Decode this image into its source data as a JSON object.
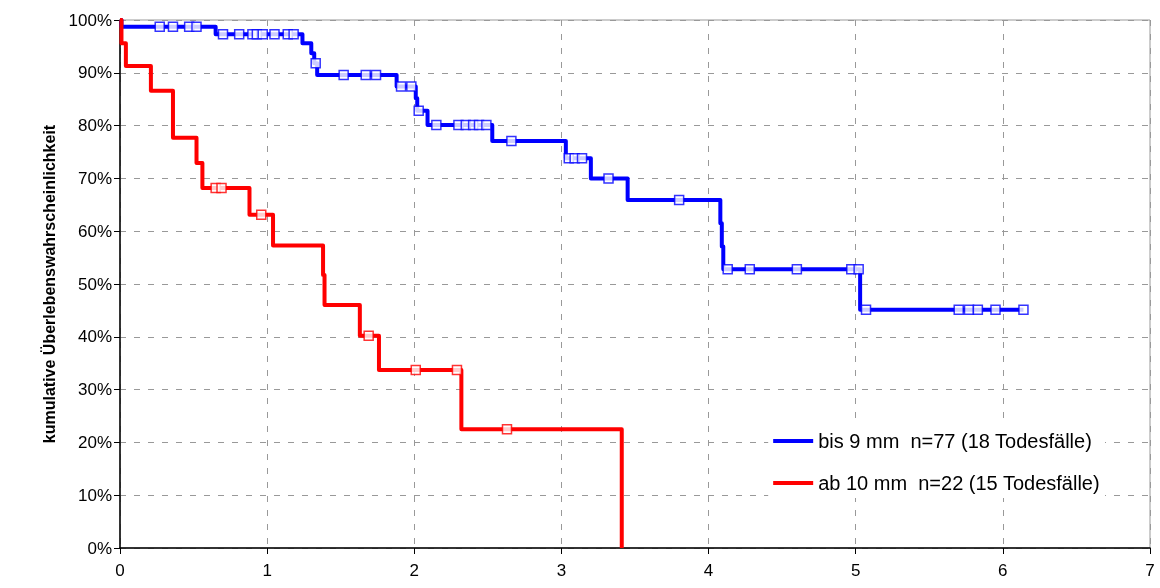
{
  "chart_data": {
    "type": "step",
    "ylabel": "kumulative Überlebenswahrscheinlichkeit",
    "xlim": [
      0,
      7
    ],
    "xticks": [
      0,
      1,
      2,
      3,
      4,
      5,
      6,
      7
    ],
    "ylim": [
      0,
      100
    ],
    "yticks": [
      {
        "value": 0,
        "label": "0%"
      },
      {
        "value": 10,
        "label": "10%"
      },
      {
        "value": 20,
        "label": "20%"
      },
      {
        "value": 30,
        "label": "30%"
      },
      {
        "value": 40,
        "label": "40%"
      },
      {
        "value": 50,
        "label": "50%"
      },
      {
        "value": 60,
        "label": "60%"
      },
      {
        "value": 70,
        "label": "70%"
      },
      {
        "value": 80,
        "label": "80%"
      },
      {
        "value": 90,
        "label": "90%"
      },
      {
        "value": 100,
        "label": "100%"
      }
    ],
    "grid": true,
    "legend": "bottom right",
    "line_style": "solid",
    "series": [
      {
        "type": "step",
        "name": "bis 9 mm  n=77 (18 Todesfälle)",
        "color": "#0000ff",
        "x": [
          0,
          0.01,
          0.65,
          1.24,
          1.3,
          1.32,
          1.34,
          1.88,
          2.01,
          2.02,
          2.09,
          2.53,
          3.03,
          3.2,
          3.45,
          4.08,
          4.09,
          4.1,
          5.03,
          6.14
        ],
        "values": [
          100,
          98.7,
          97.3,
          95.6,
          93.7,
          91.8,
          89.6,
          87.4,
          85.2,
          82.8,
          80.1,
          77.1,
          73.8,
          70.0,
          65.9,
          61.5,
          57.1,
          52.8,
          45.1,
          45.1
        ]
      },
      {
        "type": "step",
        "name": "ab 10 mm  n=22 (15 Todesfälle)",
        "color": "#ff0000",
        "x": [
          0,
          0.01,
          0.04,
          0.21,
          0.36,
          0.52,
          0.56,
          0.88,
          1.04,
          1.38,
          1.39,
          1.63,
          1.76,
          2.32,
          3.41
        ],
        "values": [
          100,
          95.6,
          91.3,
          86.6,
          77.7,
          72.9,
          68.2,
          63.1,
          57.3,
          51.7,
          46.0,
          40.2,
          33.7,
          22.5,
          0
        ]
      },
      {
        "type": "scatter",
        "marker": "square",
        "color": "#0000ff",
        "x": [
          0.27,
          0.36,
          0.47,
          0.52,
          0.7,
          0.81,
          0.9,
          0.93,
          0.97,
          1.05,
          1.14,
          1.18,
          1.33,
          1.52,
          1.67,
          1.74,
          1.91,
          1.98,
          2.03,
          2.15,
          2.3,
          2.35,
          2.4,
          2.44,
          2.49,
          2.66,
          3.05,
          3.09,
          3.14,
          3.32,
          3.8,
          4.13,
          4.28,
          4.6,
          4.97,
          5.02,
          5.07,
          5.7,
          5.77,
          5.83,
          5.95,
          6.14
        ],
        "values": [
          98.7,
          98.7,
          98.7,
          98.7,
          97.3,
          97.3,
          97.3,
          97.3,
          97.3,
          97.3,
          97.3,
          97.3,
          91.8,
          89.6,
          89.6,
          89.6,
          87.4,
          87.4,
          82.8,
          80.1,
          80.1,
          80.1,
          80.1,
          80.1,
          80.1,
          77.1,
          73.8,
          73.8,
          73.8,
          70.0,
          65.9,
          52.8,
          52.8,
          52.8,
          52.8,
          52.8,
          45.1,
          45.1,
          45.1,
          45.1,
          45.1,
          45.1
        ]
      },
      {
        "type": "scatter",
        "marker": "square",
        "color": "#ff0000",
        "x": [
          0.65,
          0.69,
          0.96,
          1.69,
          2.01,
          2.29,
          2.63
        ],
        "values": [
          68.2,
          68.2,
          63.1,
          40.2,
          33.7,
          33.7,
          22.5
        ]
      }
    ]
  }
}
